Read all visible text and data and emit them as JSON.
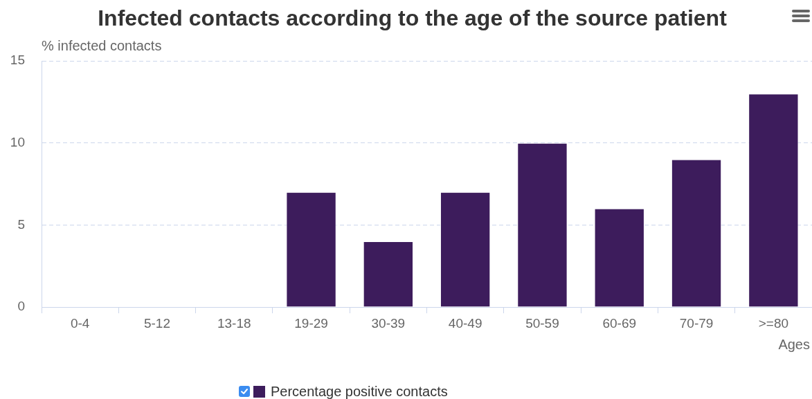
{
  "chart_data": {
    "type": "bar",
    "title": "Infected contacts according to the age of the source patient",
    "xlabel": "Ages",
    "ylabel": "% infected contacts",
    "categories": [
      "0-4",
      "5-12",
      "13-18",
      "19-29",
      "30-39",
      "40-49",
      "50-59",
      "60-69",
      "70-79",
      ">=80"
    ],
    "series": [
      {
        "name": "Percentage positive contacts",
        "color": "#3d1c5c",
        "values": [
          null,
          null,
          null,
          7,
          4,
          7,
          10,
          6,
          9,
          13
        ]
      }
    ],
    "ylim": [
      0,
      15
    ],
    "yticks": [
      0,
      5,
      10,
      15
    ],
    "grid": "y",
    "legend": "bottom"
  }
}
